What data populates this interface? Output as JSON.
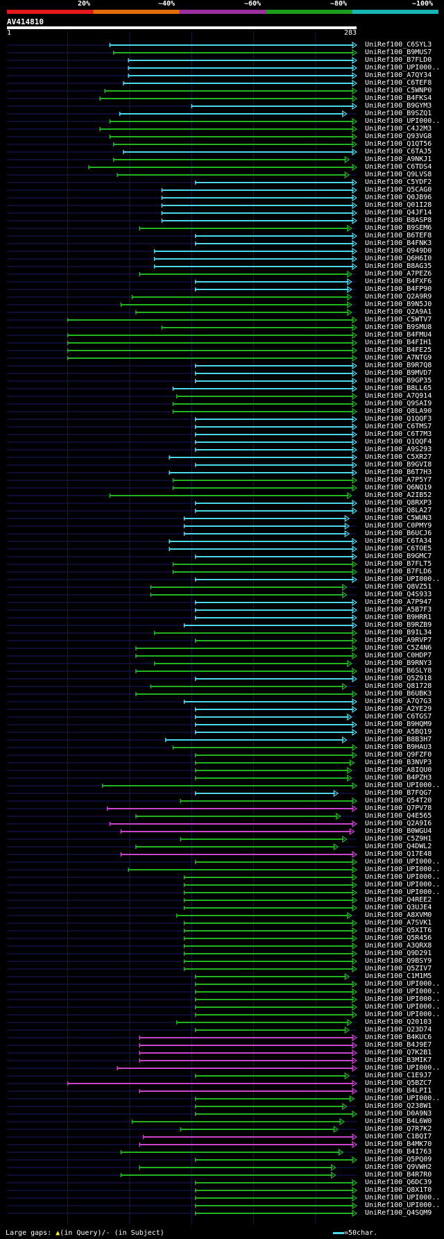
{
  "query": {
    "id": "AV414810",
    "start": "1",
    "end": "283",
    "length": 283
  },
  "identity_scale": [
    {
      "label": "20%",
      "color": "#e31a1c"
    },
    {
      "label": "~40%",
      "color": "#e36c09"
    },
    {
      "label": "~60%",
      "color": "#9b2d9e"
    },
    {
      "label": "~80%",
      "color": "#1e9c1e"
    },
    {
      "label": "~100%",
      "color": "#19b4b4"
    }
  ],
  "colors": {
    "cyan": "#4cd8e8",
    "green": "#22b422",
    "magenta": "#cc44cc",
    "dark": "#1a1a66"
  },
  "footer": {
    "gaps_label": "Large gaps:",
    "query_gap": "(in Query)/",
    "subject_gap": "- (in Subject)",
    "scale_key": "=50char."
  },
  "hits": [
    {
      "name": "UniRef100_C6SYL3",
      "s": 84,
      "e": 283,
      "c": "cyan"
    },
    {
      "name": "UniRef100_B9MUS7",
      "s": 87,
      "e": 283,
      "c": "green"
    },
    {
      "name": "UniRef100_B7FLD0",
      "s": 99,
      "e": 283,
      "c": "cyan"
    },
    {
      "name": "UniRef100_UPI000..",
      "s": 99,
      "e": 283,
      "c": "cyan"
    },
    {
      "name": "UniRef100_A7QY34",
      "s": 99,
      "e": 283,
      "c": "cyan"
    },
    {
      "name": "UniRef100_C6TEF8",
      "s": 95,
      "e": 283,
      "c": "cyan"
    },
    {
      "name": "UniRef100_C5WNP0",
      "s": 80,
      "e": 283,
      "c": "green"
    },
    {
      "name": "UniRef100_B4FKS4",
      "s": 76,
      "e": 283,
      "c": "green"
    },
    {
      "name": "UniRef100_B9GYM3",
      "s": 150,
      "e": 283,
      "c": "cyan"
    },
    {
      "name": "UniRef100_B9SZQ1",
      "s": 92,
      "e": 275,
      "c": "cyan"
    },
    {
      "name": "UniRef100_UPI000..",
      "s": 84,
      "e": 283,
      "c": "green"
    },
    {
      "name": "UniRef100_C4J2M3",
      "s": 76,
      "e": 283,
      "c": "green"
    },
    {
      "name": "UniRef100_Q93VG8",
      "s": 84,
      "e": 283,
      "c": "green"
    },
    {
      "name": "UniRef100_Q1QT56",
      "s": 87,
      "e": 283,
      "c": "green"
    },
    {
      "name": "UniRef100_C6TAJ5",
      "s": 95,
      "e": 283,
      "c": "cyan"
    },
    {
      "name": "UniRef100_A9NKJ1",
      "s": 87,
      "e": 277,
      "c": "green"
    },
    {
      "name": "UniRef100_C6TDS4",
      "s": 67,
      "e": 283,
      "c": "green"
    },
    {
      "name": "UniRef100_Q9LVS8",
      "s": 90,
      "e": 277,
      "c": "green"
    },
    {
      "name": "UniRef100_C5YDF2",
      "s": 153,
      "e": 283,
      "c": "cyan"
    },
    {
      "name": "UniRef100_Q5CAG0",
      "s": 126,
      "e": 283,
      "c": "cyan"
    },
    {
      "name": "UniRef100_Q0JB96",
      "s": 126,
      "e": 283,
      "c": "cyan"
    },
    {
      "name": "UniRef100_Q01I28",
      "s": 126,
      "e": 283,
      "c": "cyan"
    },
    {
      "name": "UniRef100_Q4JF14",
      "s": 126,
      "e": 283,
      "c": "cyan"
    },
    {
      "name": "UniRef100_B8ASP8",
      "s": 126,
      "e": 283,
      "c": "cyan"
    },
    {
      "name": "UniRef100_B9SEM6",
      "s": 108,
      "e": 279,
      "c": "green"
    },
    {
      "name": "UniRef100_B6TEF8",
      "s": 153,
      "e": 283,
      "c": "cyan"
    },
    {
      "name": "UniRef100_B4FNK3",
      "s": 153,
      "e": 283,
      "c": "cyan"
    },
    {
      "name": "UniRef100_Q949D0",
      "s": 120,
      "e": 283,
      "c": "cyan"
    },
    {
      "name": "UniRef100_Q6H6I0",
      "s": 120,
      "e": 283,
      "c": "cyan"
    },
    {
      "name": "UniRef100_B8AG35",
      "s": 120,
      "e": 283,
      "c": "cyan"
    },
    {
      "name": "UniRef100_A7PEZ6",
      "s": 108,
      "e": 279,
      "c": "green"
    },
    {
      "name": "UniRef100_B4FXF6",
      "s": 153,
      "e": 279,
      "c": "cyan"
    },
    {
      "name": "UniRef100_B4FP90",
      "s": 153,
      "e": 279,
      "c": "cyan"
    },
    {
      "name": "UniRef100_Q2A9R9",
      "s": 102,
      "e": 279,
      "c": "green"
    },
    {
      "name": "UniRef100_B9N5J0",
      "s": 93,
      "e": 279,
      "c": "green"
    },
    {
      "name": "UniRef100_Q2A9A1",
      "s": 105,
      "e": 279,
      "c": "green"
    },
    {
      "name": "UniRef100_C5WTV7",
      "s": 50,
      "e": 283,
      "c": "green"
    },
    {
      "name": "UniRef100_B9SMU8",
      "s": 126,
      "e": 283,
      "c": "green"
    },
    {
      "name": "UniRef100_B4FMU4",
      "s": 50,
      "e": 283,
      "c": "green"
    },
    {
      "name": "UniRef100_B4FIH1",
      "s": 50,
      "e": 283,
      "c": "green"
    },
    {
      "name": "UniRef100_B4FE25",
      "s": 50,
      "e": 283,
      "c": "green"
    },
    {
      "name": "UniRef100_A7NTG9",
      "s": 50,
      "e": 283,
      "c": "green"
    },
    {
      "name": "UniRef100_B9R7Q8",
      "s": 153,
      "e": 283,
      "c": "cyan"
    },
    {
      "name": "UniRef100_B9MVD7",
      "s": 153,
      "e": 283,
      "c": "cyan"
    },
    {
      "name": "UniRef100_B9GP35",
      "s": 153,
      "e": 283,
      "c": "cyan"
    },
    {
      "name": "UniRef100_B8LL65",
      "s": 135,
      "e": 283,
      "c": "cyan"
    },
    {
      "name": "UniRef100_A7Q914",
      "s": 138,
      "e": 283,
      "c": "green"
    },
    {
      "name": "UniRef100_Q9SAI9",
      "s": 135,
      "e": 283,
      "c": "green"
    },
    {
      "name": "UniRef100_Q8LA90",
      "s": 135,
      "e": 283,
      "c": "green"
    },
    {
      "name": "UniRef100_Q1QQF3",
      "s": 153,
      "e": 283,
      "c": "cyan"
    },
    {
      "name": "UniRef100_C6TMS7",
      "s": 153,
      "e": 283,
      "c": "cyan"
    },
    {
      "name": "UniRef100_C6T7M3",
      "s": 153,
      "e": 283,
      "c": "cyan"
    },
    {
      "name": "UniRef100_Q1QQF4",
      "s": 153,
      "e": 283,
      "c": "cyan"
    },
    {
      "name": "UniRef100_A9S293",
      "s": 153,
      "e": 283,
      "c": "cyan"
    },
    {
      "name": "UniRef100_C5XR27",
      "s": 132,
      "e": 283,
      "c": "cyan"
    },
    {
      "name": "UniRef100_B9GVI8",
      "s": 153,
      "e": 283,
      "c": "cyan"
    },
    {
      "name": "UniRef100_B6T7H3",
      "s": 132,
      "e": 283,
      "c": "cyan"
    },
    {
      "name": "UniRef100_A7P5Y7",
      "s": 135,
      "e": 283,
      "c": "green"
    },
    {
      "name": "UniRef100_Q6NQ19",
      "s": 135,
      "e": 283,
      "c": "green"
    },
    {
      "name": "UniRef100_A2IB52",
      "s": 84,
      "e": 279,
      "c": "green"
    },
    {
      "name": "UniRef100_Q8RXP3",
      "s": 153,
      "e": 283,
      "c": "cyan"
    },
    {
      "name": "UniRef100_Q8LA27",
      "s": 153,
      "e": 283,
      "c": "cyan"
    },
    {
      "name": "UniRef100_C5WUN3",
      "s": 144,
      "e": 277,
      "c": "cyan"
    },
    {
      "name": "UniRef100_C0PMY9",
      "s": 144,
      "e": 277,
      "c": "cyan"
    },
    {
      "name": "UniRef100_B6UCJ6",
      "s": 144,
      "e": 277,
      "c": "cyan"
    },
    {
      "name": "UniRef100_C6TA34",
      "s": 132,
      "e": 283,
      "c": "cyan"
    },
    {
      "name": "UniRef100_C6TOE5",
      "s": 132,
      "e": 283,
      "c": "cyan"
    },
    {
      "name": "UniRef100_B9GMC7",
      "s": 153,
      "e": 283,
      "c": "cyan"
    },
    {
      "name": "UniRef100_B7FLT5",
      "s": 135,
      "e": 283,
      "c": "green"
    },
    {
      "name": "UniRef100_B7FLD6",
      "s": 135,
      "e": 283,
      "c": "green"
    },
    {
      "name": "UniRef100_UPI000..",
      "s": 153,
      "e": 283,
      "c": "cyan"
    },
    {
      "name": "UniRef100_Q8VZ51",
      "s": 117,
      "e": 275,
      "c": "green"
    },
    {
      "name": "UniRef100_Q4S933",
      "s": 117,
      "e": 275,
      "c": "green"
    },
    {
      "name": "UniRef100_A7P947",
      "s": 153,
      "e": 283,
      "c": "cyan"
    },
    {
      "name": "UniRef100_A5B7F3",
      "s": 153,
      "e": 283,
      "c": "cyan"
    },
    {
      "name": "UniRef100_B9HRR1",
      "s": 153,
      "e": 283,
      "c": "cyan"
    },
    {
      "name": "UniRef100_B9RZB9",
      "s": 144,
      "e": 283,
      "c": "cyan"
    },
    {
      "name": "UniRef100_B9IL34",
      "s": 120,
      "e": 283,
      "c": "green"
    },
    {
      "name": "UniRef100_A9RVP7",
      "s": 153,
      "e": 283,
      "c": "green"
    },
    {
      "name": "UniRef100_C5Z4N6",
      "s": 105,
      "e": 283,
      "c": "green"
    },
    {
      "name": "UniRef100_C0HDP7",
      "s": 105,
      "e": 283,
      "c": "green"
    },
    {
      "name": "UniRef100_B9RNY3",
      "s": 120,
      "e": 279,
      "c": "green"
    },
    {
      "name": "UniRef100_B6SLY8",
      "s": 105,
      "e": 283,
      "c": "green"
    },
    {
      "name": "UniRef100_Q5Z918",
      "s": 153,
      "e": 283,
      "c": "cyan"
    },
    {
      "name": "UniRef100_Q81728",
      "s": 117,
      "e": 275,
      "c": "green"
    },
    {
      "name": "UniRef100_B6UBK3",
      "s": 105,
      "e": 283,
      "c": "green"
    },
    {
      "name": "UniRef100_A7Q7G3",
      "s": 144,
      "e": 283,
      "c": "cyan"
    },
    {
      "name": "UniRef100_A2YE29",
      "s": 153,
      "e": 283,
      "c": "cyan"
    },
    {
      "name": "UniRef100_C6TGS7",
      "s": 153,
      "e": 279,
      "c": "cyan"
    },
    {
      "name": "UniRef100_B9HQM9",
      "s": 153,
      "e": 283,
      "c": "cyan"
    },
    {
      "name": "UniRef100_A5BQ19",
      "s": 153,
      "e": 283,
      "c": "cyan"
    },
    {
      "name": "UniRef100_B8B3H7",
      "s": 129,
      "e": 275,
      "c": "cyan"
    },
    {
      "name": "UniRef100_B9HAU3",
      "s": 135,
      "e": 283,
      "c": "green"
    },
    {
      "name": "UniRef100_Q9FZF0",
      "s": 153,
      "e": 283,
      "c": "green"
    },
    {
      "name": "UniRef100_B3NVP3",
      "s": 153,
      "e": 281,
      "c": "green"
    },
    {
      "name": "UniRef100_A8IQU0",
      "s": 153,
      "e": 279,
      "c": "green"
    },
    {
      "name": "UniRef100_B4PZH3",
      "s": 153,
      "e": 279,
      "c": "green"
    },
    {
      "name": "UniRef100_UPI000..",
      "s": 78,
      "e": 283,
      "c": "green"
    },
    {
      "name": "UniRef100_B7FQG7",
      "s": 153,
      "e": 268,
      "c": "cyan"
    },
    {
      "name": "UniRef100_Q54T20",
      "s": 141,
      "e": 283,
      "c": "green"
    },
    {
      "name": "UniRef100_Q7PV78",
      "s": 82,
      "e": 283,
      "c": "magenta"
    },
    {
      "name": "UniRef100_Q4E565",
      "s": 105,
      "e": 270,
      "c": "green"
    },
    {
      "name": "UniRef100_Q2A9I6",
      "s": 84,
      "e": 283,
      "c": "magenta"
    },
    {
      "name": "UniRef100_B0WGU4",
      "s": 93,
      "e": 281,
      "c": "magenta"
    },
    {
      "name": "UniRef100_C5Z9H1",
      "s": 141,
      "e": 275,
      "c": "green"
    },
    {
      "name": "UniRef100_Q4DWL2",
      "s": 105,
      "e": 268,
      "c": "green"
    },
    {
      "name": "UniRef100_Q17E48",
      "s": 93,
      "e": 283,
      "c": "magenta"
    },
    {
      "name": "UniRef100_UPI000..",
      "s": 153,
      "e": 283,
      "c": "green"
    },
    {
      "name": "UniRef100_UPI000..",
      "s": 99,
      "e": 283,
      "c": "green"
    },
    {
      "name": "UniRef100_UPI000..",
      "s": 144,
      "e": 283,
      "c": "green"
    },
    {
      "name": "UniRef100_UPI000..",
      "s": 144,
      "e": 283,
      "c": "green"
    },
    {
      "name": "UniRef100_UPI000..",
      "s": 144,
      "e": 283,
      "c": "green"
    },
    {
      "name": "UniRef100_Q4REE2",
      "s": 144,
      "e": 283,
      "c": "green"
    },
    {
      "name": "UniRef100_Q3UJE4",
      "s": 144,
      "e": 283,
      "c": "green"
    },
    {
      "name": "UniRef100_A8XVM0",
      "s": 138,
      "e": 279,
      "c": "green"
    },
    {
      "name": "UniRef100_A7SVK1",
      "s": 144,
      "e": 283,
      "c": "green"
    },
    {
      "name": "UniRef100_Q5XIT6",
      "s": 144,
      "e": 283,
      "c": "green"
    },
    {
      "name": "UniRef100_Q5R456",
      "s": 144,
      "e": 283,
      "c": "green"
    },
    {
      "name": "UniRef100_A3QRX8",
      "s": 144,
      "e": 283,
      "c": "green"
    },
    {
      "name": "UniRef100_Q9D291",
      "s": 144,
      "e": 283,
      "c": "green"
    },
    {
      "name": "UniRef100_Q9BSY9",
      "s": 144,
      "e": 283,
      "c": "green"
    },
    {
      "name": "UniRef100_Q5ZIV7",
      "s": 144,
      "e": 283,
      "c": "green"
    },
    {
      "name": "UniRef100_C1M1M5",
      "s": 153,
      "e": 277,
      "c": "green"
    },
    {
      "name": "UniRef100_UPI000..",
      "s": 153,
      "e": 283,
      "c": "green"
    },
    {
      "name": "UniRef100_UPI000..",
      "s": 153,
      "e": 283,
      "c": "green"
    },
    {
      "name": "UniRef100_UPI000..",
      "s": 153,
      "e": 283,
      "c": "green"
    },
    {
      "name": "UniRef100_UPI000..",
      "s": 153,
      "e": 283,
      "c": "green"
    },
    {
      "name": "UniRef100_UPI000..",
      "s": 153,
      "e": 283,
      "c": "green"
    },
    {
      "name": "UniRef100_Q20103",
      "s": 138,
      "e": 279,
      "c": "green"
    },
    {
      "name": "UniRef100_Q23D74",
      "s": 153,
      "e": 277,
      "c": "green"
    },
    {
      "name": "UniRef100_B4KUC6",
      "s": 108,
      "e": 283,
      "c": "magenta"
    },
    {
      "name": "UniRef100_B4J9E7",
      "s": 108,
      "e": 283,
      "c": "magenta"
    },
    {
      "name": "UniRef100_Q7K2B1",
      "s": 108,
      "e": 283,
      "c": "magenta"
    },
    {
      "name": "UniRef100_B3MIK7",
      "s": 108,
      "e": 283,
      "c": "magenta"
    },
    {
      "name": "UniRef100_UPI000..",
      "s": 90,
      "e": 283,
      "c": "magenta"
    },
    {
      "name": "UniRef100_C1E9J7",
      "s": 153,
      "e": 277,
      "c": "green"
    },
    {
      "name": "UniRef100_Q5BZC7",
      "s": 50,
      "e": 283,
      "c": "magenta"
    },
    {
      "name": "UniRef100_B4LPI1",
      "s": 108,
      "e": 283,
      "c": "magenta"
    },
    {
      "name": "UniRef100_UPI000..",
      "s": 153,
      "e": 281,
      "c": "green"
    },
    {
      "name": "UniRef100_Q238W1",
      "s": 153,
      "e": 275,
      "c": "green"
    },
    {
      "name": "UniRef100_D0A9N3",
      "s": 153,
      "e": 283,
      "c": "green"
    },
    {
      "name": "UniRef100_B4L6W0",
      "s": 102,
      "e": 273,
      "c": "green"
    },
    {
      "name": "UniRef100_Q7R7K2",
      "s": 141,
      "e": 268,
      "c": "green"
    },
    {
      "name": "UniRef100_C1BQI7",
      "s": 111,
      "e": 283,
      "c": "magenta"
    },
    {
      "name": "UniRef100_B4MK70",
      "s": 108,
      "e": 283,
      "c": "magenta"
    },
    {
      "name": "UniRef100_B4I763",
      "s": 93,
      "e": 272,
      "c": "green"
    },
    {
      "name": "UniRef100_Q5PQ09",
      "s": 153,
      "e": 283,
      "c": "green"
    },
    {
      "name": "UniRef100_Q9VWH2",
      "s": 108,
      "e": 266,
      "c": "green"
    },
    {
      "name": "UniRef100_B4R7R0",
      "s": 93,
      "e": 266,
      "c": "green"
    },
    {
      "name": "UniRef100_Q6DC39",
      "s": 153,
      "e": 283,
      "c": "green"
    },
    {
      "name": "UniRef100_Q8X1T0",
      "s": 153,
      "e": 283,
      "c": "green"
    },
    {
      "name": "UniRef100_UPI000..",
      "s": 153,
      "e": 283,
      "c": "green"
    },
    {
      "name": "UniRef100_UPI000..",
      "s": 153,
      "e": 283,
      "c": "green"
    },
    {
      "name": "UniRef100_Q4SQM9",
      "s": 153,
      "e": 283,
      "c": "green"
    }
  ]
}
